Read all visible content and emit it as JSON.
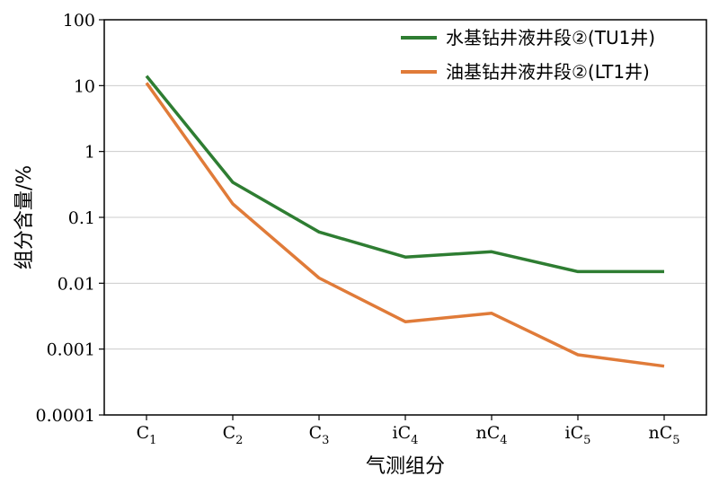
{
  "chart_data": {
    "type": "line",
    "categories": [
      "C1",
      "C2",
      "C3",
      "iC4",
      "nC4",
      "iC5",
      "nC5"
    ],
    "category_parts": [
      {
        "main": "C",
        "sub": "1"
      },
      {
        "main": "C",
        "sub": "2"
      },
      {
        "main": "C",
        "sub": "3"
      },
      {
        "main": "iC",
        "sub": "4"
      },
      {
        "main": "nC",
        "sub": "4"
      },
      {
        "main": "iC",
        "sub": "5"
      },
      {
        "main": "nC",
        "sub": "5"
      }
    ],
    "series": [
      {
        "name": "水基钻井液井段②(TU1井)",
        "color": "#2e7d32",
        "values": [
          14,
          0.34,
          0.06,
          0.025,
          0.03,
          0.015,
          0.015
        ]
      },
      {
        "name": "油基钻井液井段②(LT1井)",
        "color": "#e07b39",
        "values": [
          11,
          0.16,
          0.012,
          0.0026,
          0.0035,
          0.00082,
          0.00055
        ]
      }
    ],
    "xlabel": "气测组分",
    "ylabel": "组分含量/%",
    "yscale": "log",
    "ylim": [
      0.0001,
      100
    ],
    "y_ticks": [
      0.0001,
      0.001,
      0.01,
      0.1,
      1,
      10,
      100
    ],
    "y_tick_labels": [
      "0.0001",
      "0.001",
      "0.01",
      "0.1",
      "1",
      "10",
      "100"
    ],
    "grid": "horizontal",
    "legend_position": "top-right"
  }
}
